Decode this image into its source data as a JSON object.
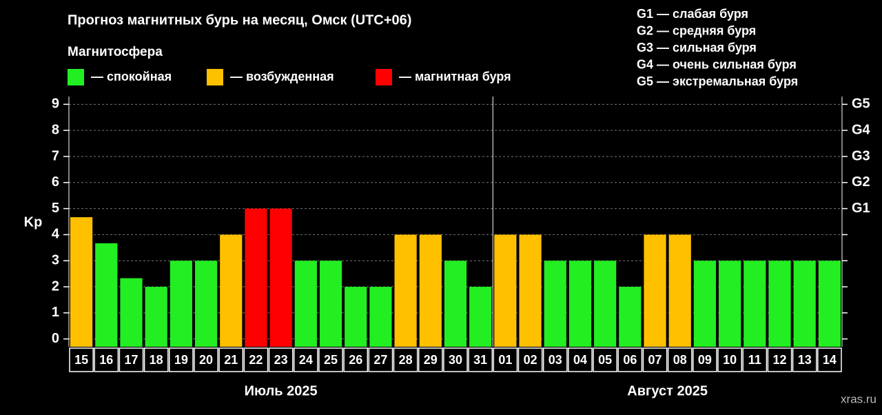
{
  "chart_data": {
    "type": "bar",
    "title": "Прогноз магнитных бурь на месяц, Омск (UTC+06)",
    "subtitle": "Магнитосфера",
    "ylabel": "Kp",
    "legend": [
      {
        "name": "— спокойная",
        "color": "#22ee22"
      },
      {
        "name": "— возбужденная",
        "color": "#ffc000"
      },
      {
        "name": "— магнитная буря",
        "color": "#ff0000"
      }
    ],
    "storm_scale": [
      "G1 — слабая буря",
      "G2 — средняя буря",
      "G3 — сильная буря",
      "G4 — очень сильная буря",
      "G5 — экстремальная буря"
    ],
    "groups": [
      {
        "label": "Июль 2025",
        "categories": [
          "15",
          "16",
          "17",
          "18",
          "19",
          "20",
          "21",
          "22",
          "23",
          "24",
          "25",
          "26",
          "27",
          "28",
          "29",
          "30",
          "31"
        ],
        "values": [
          4.67,
          3.67,
          2.33,
          2,
          3,
          3,
          4,
          5,
          5,
          3,
          3,
          2,
          2,
          4,
          4,
          3,
          2
        ],
        "colors": [
          "#ffc000",
          "#22ee22",
          "#22ee22",
          "#22ee22",
          "#22ee22",
          "#22ee22",
          "#ffc000",
          "#ff0000",
          "#ff0000",
          "#22ee22",
          "#22ee22",
          "#22ee22",
          "#22ee22",
          "#ffc000",
          "#ffc000",
          "#22ee22",
          "#22ee22"
        ]
      },
      {
        "label": "Август 2025",
        "categories": [
          "01",
          "02",
          "03",
          "04",
          "05",
          "06",
          "07",
          "08",
          "09",
          "10",
          "11",
          "12",
          "13",
          "14"
        ],
        "values": [
          4,
          4,
          3,
          3,
          3,
          2,
          4,
          4,
          3,
          3,
          3,
          3,
          3,
          3
        ],
        "colors": [
          "#ffc000",
          "#ffc000",
          "#22ee22",
          "#22ee22",
          "#22ee22",
          "#22ee22",
          "#ffc000",
          "#ffc000",
          "#22ee22",
          "#22ee22",
          "#22ee22",
          "#22ee22",
          "#22ee22",
          "#22ee22"
        ]
      }
    ],
    "ylim": [
      -0.3,
      9.3
    ],
    "yticks": [
      0,
      1,
      2,
      3,
      4,
      5,
      6,
      7,
      8,
      9
    ],
    "y2ticks": [
      {
        "value": 5,
        "label": "G1"
      },
      {
        "value": 6,
        "label": "G2"
      },
      {
        "value": 7,
        "label": "G3"
      },
      {
        "value": 8,
        "label": "G4"
      },
      {
        "value": 9,
        "label": "G5"
      }
    ],
    "grid": true,
    "watermark": "xras.ru"
  }
}
